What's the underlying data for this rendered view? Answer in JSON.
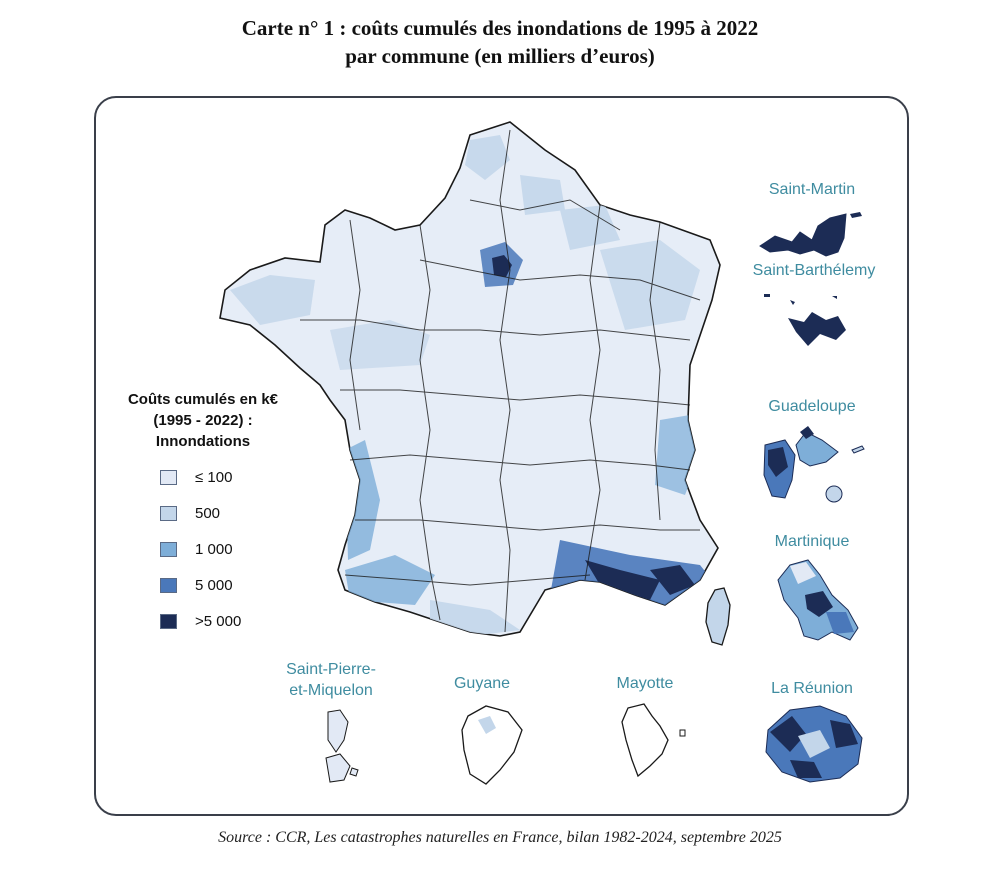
{
  "title": {
    "line1": "Carte n° 1 : coûts cumulés des inondations de 1995 à 2022",
    "line2": "par commune (en milliers d’euros)"
  },
  "legend": {
    "title_line1": "Coûts cumulés en k€",
    "title_line2": "(1995 - 2022) :",
    "title_line3": "Innondations",
    "items": [
      {
        "label": "≤ 100",
        "color": "#e2e9f5"
      },
      {
        "label": "500",
        "color": "#c3d6ea"
      },
      {
        "label": "1 000",
        "color": "#7eaed8"
      },
      {
        "label": "5 000",
        "color": "#4a78ba"
      },
      {
        "label": ">5 000",
        "color": "#1c2c55"
      }
    ]
  },
  "territories": {
    "saint_martin": "Saint-Martin",
    "saint_barthelemy": "Saint-Barthélemy",
    "guadeloupe": "Guadeloupe",
    "martinique": "Martinique",
    "la_reunion": "La Réunion",
    "saint_pierre_line1": "Saint-Pierre-",
    "saint_pierre_line2": "et-Miquelon",
    "guyane": "Guyane",
    "mayotte": "Mayotte"
  },
  "source": "Source : CCR, Les catastrophes naturelles en France, bilan 1982-2024, septembre 2025",
  "colors": {
    "frame_border": "#3a3f4a",
    "label_teal": "#3f8ca0",
    "light": "#e2e9f5",
    "pale": "#c3d6ea",
    "medium": "#7eaed8",
    "strong": "#4a78ba",
    "dark": "#1c2c55"
  }
}
